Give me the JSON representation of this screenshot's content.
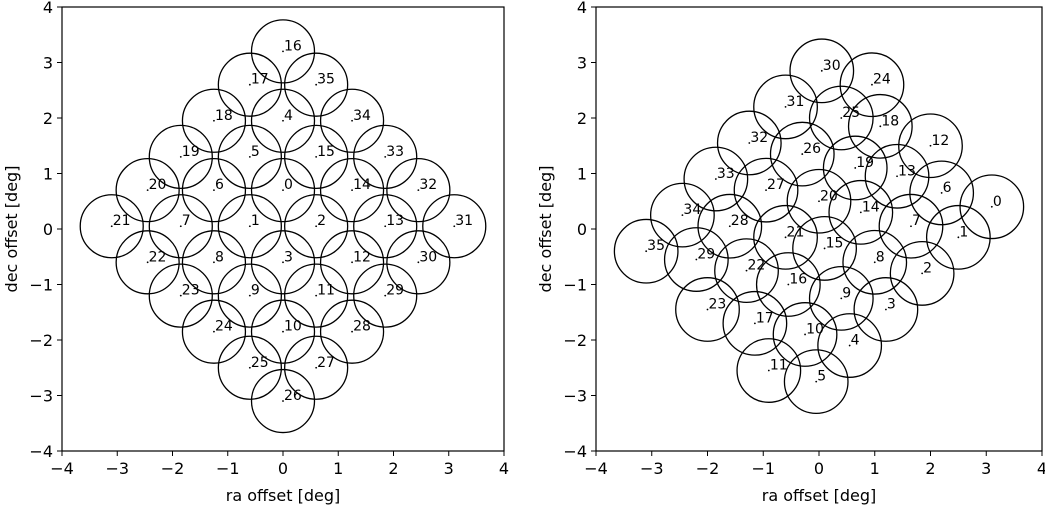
{
  "chart_data": [
    {
      "type": "scatter",
      "title": "",
      "xlabel": "ra offset [deg]",
      "ylabel": "dec offset [deg]",
      "xlim": [
        -4,
        4
      ],
      "ylim": [
        -4,
        4
      ],
      "xticks": [
        -4,
        -3,
        -2,
        -1,
        0,
        1,
        2,
        3,
        4
      ],
      "yticks": [
        -4,
        -3,
        -2,
        -1,
        0,
        1,
        2,
        3,
        4
      ],
      "grid": false,
      "circle_radius": 0.57,
      "points": [
        {
          "label": "0",
          "x": 0.0,
          "y": 0.7
        },
        {
          "label": "1",
          "x": -0.6,
          "y": 0.05
        },
        {
          "label": "2",
          "x": 0.6,
          "y": 0.05
        },
        {
          "label": "3",
          "x": 0.0,
          "y": -0.6
        },
        {
          "label": "4",
          "x": 0.0,
          "y": 1.95
        },
        {
          "label": "5",
          "x": -0.6,
          "y": 1.3
        },
        {
          "label": "6",
          "x": -1.25,
          "y": 0.7
        },
        {
          "label": "7",
          "x": -1.85,
          "y": 0.05
        },
        {
          "label": "8",
          "x": -1.25,
          "y": -0.6
        },
        {
          "label": "9",
          "x": -0.6,
          "y": -1.2
        },
        {
          "label": "10",
          "x": 0.0,
          "y": -1.85
        },
        {
          "label": "11",
          "x": 0.6,
          "y": -1.2
        },
        {
          "label": "12",
          "x": 1.25,
          "y": -0.6
        },
        {
          "label": "13",
          "x": 1.85,
          "y": 0.05
        },
        {
          "label": "14",
          "x": 1.25,
          "y": 0.7
        },
        {
          "label": "15",
          "x": 0.6,
          "y": 1.3
        },
        {
          "label": "16",
          "x": 0.0,
          "y": 3.2
        },
        {
          "label": "17",
          "x": -0.6,
          "y": 2.6
        },
        {
          "label": "18",
          "x": -1.25,
          "y": 1.95
        },
        {
          "label": "19",
          "x": -1.85,
          "y": 1.3
        },
        {
          "label": "20",
          "x": -2.45,
          "y": 0.7
        },
        {
          "label": "21",
          "x": -3.1,
          "y": 0.05
        },
        {
          "label": "22",
          "x": -2.45,
          "y": -0.6
        },
        {
          "label": "23",
          "x": -1.85,
          "y": -1.2
        },
        {
          "label": "24",
          "x": -1.25,
          "y": -1.85
        },
        {
          "label": "25",
          "x": -0.6,
          "y": -2.5
        },
        {
          "label": "26",
          "x": 0.0,
          "y": -3.1
        },
        {
          "label": "27",
          "x": 0.6,
          "y": -2.5
        },
        {
          "label": "28",
          "x": 1.25,
          "y": -1.85
        },
        {
          "label": "29",
          "x": 1.85,
          "y": -1.2
        },
        {
          "label": "30",
          "x": 2.45,
          "y": -0.6
        },
        {
          "label": "31",
          "x": 3.1,
          "y": 0.05
        },
        {
          "label": "32",
          "x": 2.45,
          "y": 0.7
        },
        {
          "label": "33",
          "x": 1.85,
          "y": 1.3
        },
        {
          "label": "34",
          "x": 1.25,
          "y": 1.95
        },
        {
          "label": "35",
          "x": 0.6,
          "y": 2.6
        }
      ]
    },
    {
      "type": "scatter",
      "title": "",
      "xlabel": "ra offset [deg]",
      "ylabel": "dec offset [deg]",
      "xlim": [
        -4,
        4
      ],
      "ylim": [
        -4,
        4
      ],
      "xticks": [
        -4,
        -3,
        -2,
        -1,
        0,
        1,
        2,
        3,
        4
      ],
      "yticks": [
        -4,
        -3,
        -2,
        -1,
        0,
        1,
        2,
        3,
        4
      ],
      "grid": false,
      "circle_radius": 0.57,
      "points": [
        {
          "label": "0",
          "x": 3.1,
          "y": 0.4
        },
        {
          "label": "1",
          "x": 2.5,
          "y": -0.15
        },
        {
          "label": "2",
          "x": 1.85,
          "y": -0.8
        },
        {
          "label": "3",
          "x": 1.2,
          "y": -1.45
        },
        {
          "label": "4",
          "x": 0.55,
          "y": -2.1
        },
        {
          "label": "5",
          "x": -0.05,
          "y": -2.75
        },
        {
          "label": "6",
          "x": 2.2,
          "y": 0.65
        },
        {
          "label": "7",
          "x": 1.65,
          "y": 0.05
        },
        {
          "label": "8",
          "x": 1.0,
          "y": -0.6
        },
        {
          "label": "9",
          "x": 0.4,
          "y": -1.25
        },
        {
          "label": "10",
          "x": -0.25,
          "y": -1.9
        },
        {
          "label": "11",
          "x": -0.9,
          "y": -2.55
        },
        {
          "label": "12",
          "x": 2.0,
          "y": 1.5
        },
        {
          "label": "13",
          "x": 1.4,
          "y": 0.95
        },
        {
          "label": "14",
          "x": 0.75,
          "y": 0.3
        },
        {
          "label": "15",
          "x": 0.1,
          "y": -0.35
        },
        {
          "label": "16",
          "x": -0.55,
          "y": -1.0
        },
        {
          "label": "17",
          "x": -1.15,
          "y": -1.7
        },
        {
          "label": "18",
          "x": 1.1,
          "y": 1.85
        },
        {
          "label": "19",
          "x": 0.65,
          "y": 1.1
        },
        {
          "label": "20",
          "x": 0.0,
          "y": 0.5
        },
        {
          "label": "21",
          "x": -0.6,
          "y": -0.15
        },
        {
          "label": "22",
          "x": -1.3,
          "y": -0.75
        },
        {
          "label": "23",
          "x": -2.0,
          "y": -1.45
        },
        {
          "label": "24",
          "x": 0.95,
          "y": 2.6
        },
        {
          "label": "25",
          "x": 0.4,
          "y": 2.0
        },
        {
          "label": "26",
          "x": -0.3,
          "y": 1.35
        },
        {
          "label": "27",
          "x": -0.95,
          "y": 0.7
        },
        {
          "label": "28",
          "x": -1.6,
          "y": 0.05
        },
        {
          "label": "29",
          "x": -2.2,
          "y": -0.55
        },
        {
          "label": "30",
          "x": 0.05,
          "y": 2.85
        },
        {
          "label": "31",
          "x": -0.6,
          "y": 2.2
        },
        {
          "label": "32",
          "x": -1.25,
          "y": 1.55
        },
        {
          "label": "33",
          "x": -1.85,
          "y": 0.9
        },
        {
          "label": "34",
          "x": -2.45,
          "y": 0.25
        },
        {
          "label": "35",
          "x": -3.1,
          "y": -0.4
        }
      ]
    }
  ]
}
